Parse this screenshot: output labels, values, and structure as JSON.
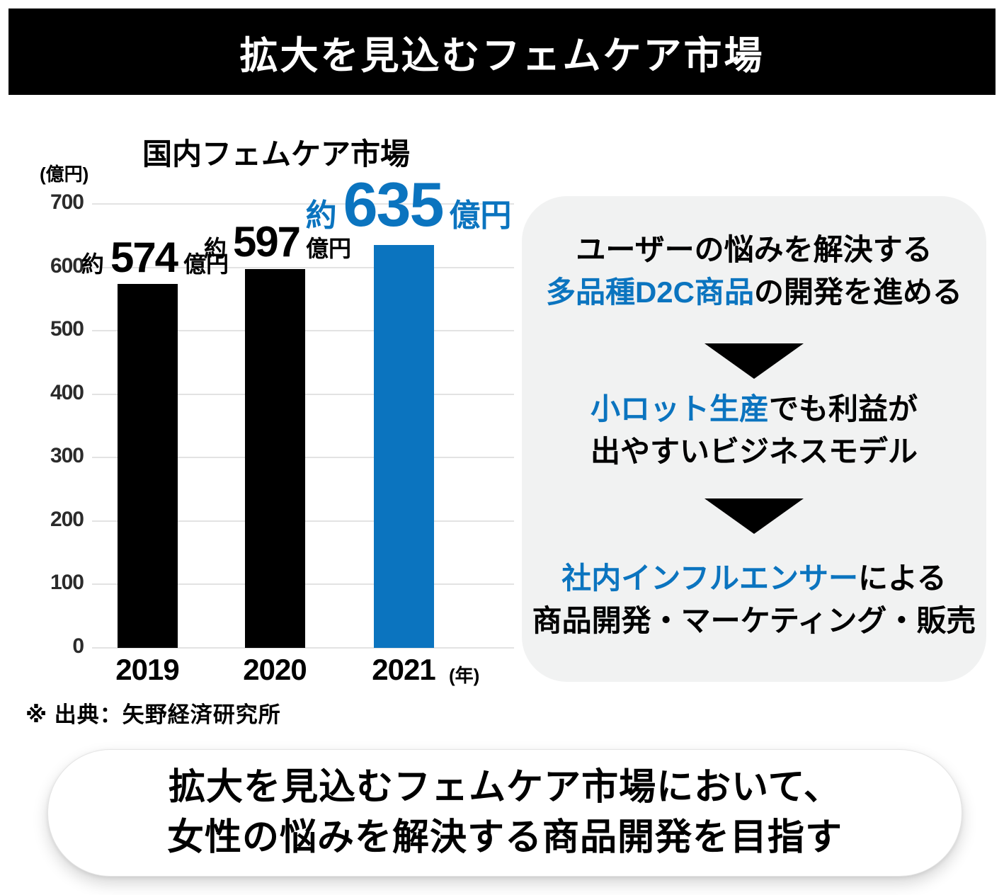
{
  "header": {
    "title": "拡大を見込むフェムケア市場"
  },
  "chart_data": {
    "type": "bar",
    "title": "国内フェムケア市場",
    "categories": [
      "2019",
      "2020",
      "2021"
    ],
    "values": [
      574,
      597,
      635
    ],
    "bar_labels": [
      {
        "approx": "約",
        "value": "574",
        "unit": "億円"
      },
      {
        "approx": "約",
        "value": "597",
        "unit": "億円"
      },
      {
        "approx": "約",
        "value": "635",
        "unit": "億円"
      }
    ],
    "ylabel": "(億円)",
    "xlabel": "(年)",
    "ylim": [
      0,
      700
    ],
    "yticks": [
      0,
      100,
      200,
      300,
      400,
      500,
      600,
      700
    ],
    "grid": "horizontal-only",
    "legend": "none",
    "bar_colors": [
      "#000000",
      "#000000",
      "#0B74BF"
    ],
    "highlight": {
      "index": 2,
      "color": "#0B74BF"
    },
    "source": "※ 出典：矢野経済研究所"
  },
  "flow": {
    "arrow_icon": "filled-down-triangle",
    "steps": [
      {
        "line1": [
          {
            "text": "ユーザーの悩みを解決する",
            "color": "black"
          }
        ],
        "line2": [
          {
            "text": "多品種D2C商品",
            "color": "blue"
          },
          {
            "text": "の開発を進める",
            "color": "black"
          }
        ]
      },
      {
        "line1": [
          {
            "text": "小ロット生産",
            "color": "blue"
          },
          {
            "text": "でも利益が",
            "color": "black"
          }
        ],
        "line2": [
          {
            "text": "出やすいビジネスモデル",
            "color": "black"
          }
        ]
      },
      {
        "line1": [
          {
            "text": "社内インフルエンサー",
            "color": "blue"
          },
          {
            "text": "による",
            "color": "black"
          }
        ],
        "line2": [
          {
            "text": "商品開発・マーケティング・販売",
            "color": "black"
          }
        ]
      }
    ]
  },
  "banner": {
    "line1": "拡大を見込むフェムケア市場において、",
    "line2": "女性の悩みを解決する商品開発を目指す"
  },
  "colors": {
    "accent_blue": "#0B74BF",
    "bar_black": "#000000",
    "panel_gray": "#F1F2F2",
    "header_bg": "#000000",
    "header_text": "#FFFFFF",
    "gridline": "#E3E3E3"
  }
}
